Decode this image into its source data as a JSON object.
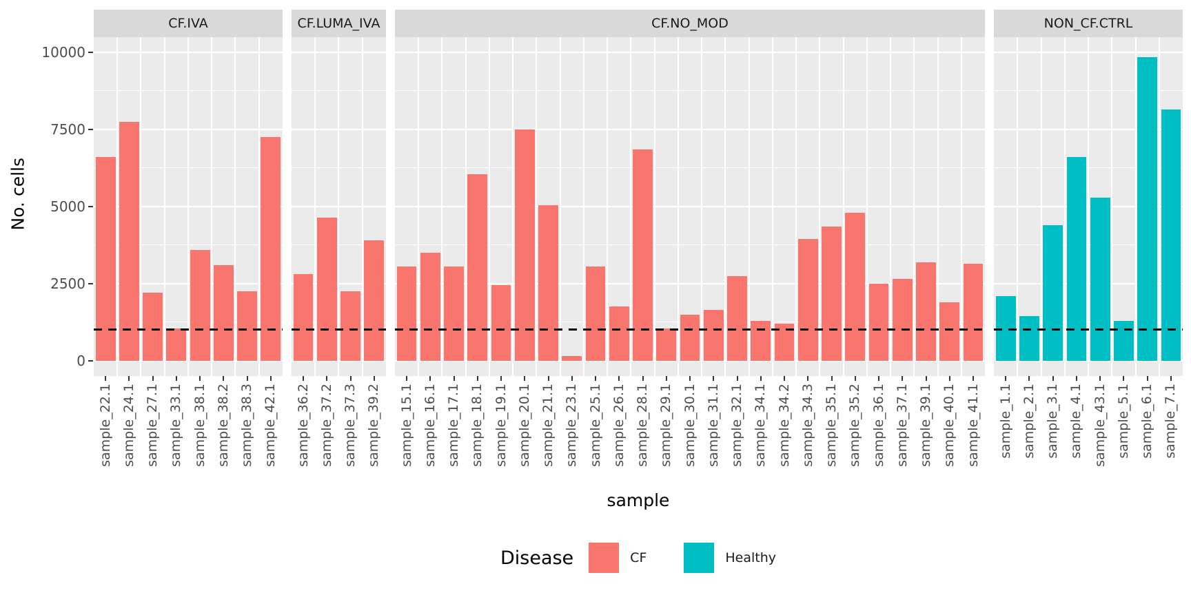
{
  "chart_data": {
    "type": "bar",
    "title": "",
    "xlabel": "sample",
    "ylabel": "No. cells",
    "ylim": [
      0,
      10000
    ],
    "yticks": [
      0,
      2500,
      5000,
      7500,
      10000
    ],
    "grid": {
      "major": [
        0,
        2500,
        5000,
        7500,
        10000
      ],
      "minor": [
        1250,
        3750,
        6250,
        8750
      ],
      "color": "#ffffff",
      "panel_bg": "#ebebeb"
    },
    "hline": {
      "y": 1000,
      "style": "dashed",
      "color": "#000000"
    },
    "strip_bg": "#d9d9d9",
    "colors": {
      "CF": "#F8766D",
      "Healthy": "#00BFC4"
    },
    "legend": {
      "title": "Disease",
      "position": "bottom",
      "items": [
        {
          "label": "CF",
          "color": "#F8766D"
        },
        {
          "label": "Healthy",
          "color": "#00BFC4"
        }
      ]
    },
    "facets": [
      {
        "label": "CF.IVA",
        "group": "CF",
        "categories": [
          "sample_22.1",
          "sample_24.1",
          "sample_27.1",
          "sample_33.1",
          "sample_38.1",
          "sample_38.2",
          "sample_38.3",
          "sample_42.1"
        ],
        "values": [
          6600,
          7750,
          2200,
          1050,
          3600,
          3100,
          2250,
          7250
        ]
      },
      {
        "label": "CF.LUMA_IVA",
        "group": "CF",
        "categories": [
          "sample_36.2",
          "sample_37.2",
          "sample_37.3",
          "sample_39.2"
        ],
        "values": [
          2800,
          4650,
          2250,
          3900
        ]
      },
      {
        "label": "CF.NO_MOD",
        "group": "CF",
        "categories": [
          "sample_15.1",
          "sample_16.1",
          "sample_17.1",
          "sample_18.1",
          "sample_19.1",
          "sample_20.1",
          "sample_21.1",
          "sample_23.1",
          "sample_25.1",
          "sample_26.1",
          "sample_28.1",
          "sample_29.1",
          "sample_30.1",
          "sample_31.1",
          "sample_32.1",
          "sample_34.1",
          "sample_34.2",
          "sample_34.3",
          "sample_35.1",
          "sample_35.2",
          "sample_36.1",
          "sample_37.1",
          "sample_39.1",
          "sample_40.1",
          "sample_41.1"
        ],
        "values": [
          3050,
          3500,
          3050,
          6050,
          2450,
          7500,
          5050,
          150,
          3050,
          1750,
          6850,
          1050,
          1500,
          1650,
          2750,
          1300,
          1200,
          3950,
          4350,
          4800,
          2500,
          2650,
          3200,
          1900,
          3150
        ]
      },
      {
        "label": "NON_CF.CTRL",
        "group": "Healthy",
        "categories": [
          "sample_1.1",
          "sample_2.1",
          "sample_3.1",
          "sample_4.1",
          "sample_43.1",
          "sample_5.1",
          "sample_6.1",
          "sample_7.1"
        ],
        "values": [
          2100,
          1450,
          4400,
          6600,
          5300,
          1300,
          9850,
          8150
        ]
      }
    ]
  }
}
